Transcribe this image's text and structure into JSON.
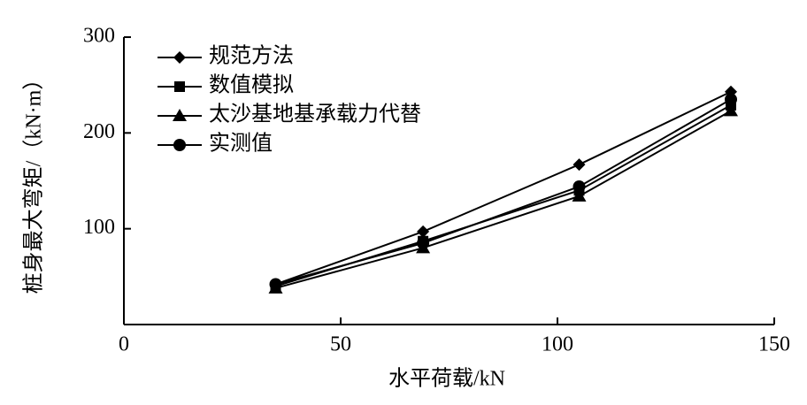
{
  "chart_data": {
    "type": "line",
    "x_label": "水平荷载/kN",
    "y_label": "桩身最大弯矩/（kN·m）",
    "x": [
      35,
      69,
      105,
      140
    ],
    "series": [
      {
        "name": "规范方法",
        "color": "#000000",
        "marker": "diamond",
        "values": [
          42,
          97,
          167,
          243
        ]
      },
      {
        "name": "数值模拟",
        "color": "#000000",
        "marker": "square",
        "values": [
          40,
          87,
          140,
          229
        ]
      },
      {
        "name": "太沙基地基承载力代替",
        "color": "#000000",
        "marker": "triangle",
        "values": [
          38,
          80,
          134,
          223
        ]
      },
      {
        "name": "实测值",
        "color": "#000000",
        "marker": "circle",
        "values": [
          42,
          85,
          144,
          235
        ]
      }
    ],
    "xlim": [
      0,
      150
    ],
    "xticks": [
      0,
      50,
      100,
      150
    ],
    "ylim": [
      0,
      300
    ],
    "yticks": [
      100,
      200,
      300
    ],
    "legend": "upper-left"
  }
}
